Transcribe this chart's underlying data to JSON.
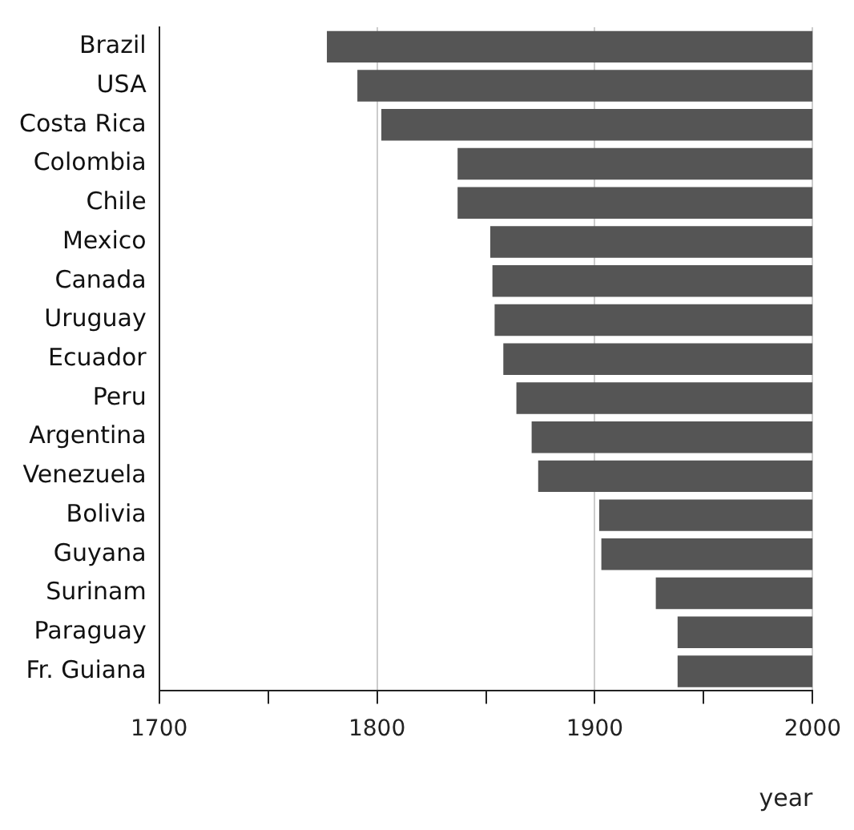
{
  "chart_data": {
    "type": "bar",
    "orientation": "horizontal",
    "xlabel": "year",
    "categories": [
      "Brazil",
      "USA",
      "Costa Rica",
      "Colombia",
      "Chile",
      "Mexico",
      "Canada",
      "Uruguay",
      "Ecuador",
      "Peru",
      "Argentina",
      "Venezuela",
      "Bolivia",
      "Guyana",
      "Surinam",
      "Paraguay",
      "Fr. Guiana"
    ],
    "base": [
      1777,
      1791,
      1802,
      1837,
      1837,
      1852,
      1853,
      1854,
      1858,
      1864,
      1871,
      1874,
      1902,
      1903,
      1928,
      1938,
      1938
    ],
    "values": [
      223,
      209,
      198,
      163,
      163,
      148,
      147,
      146,
      142,
      136,
      129,
      126,
      98,
      97,
      72,
      62,
      62
    ],
    "color": "#555555",
    "xlim": [
      1700,
      2000
    ],
    "xticks": [
      1700,
      {
        "value": 1750,
        "label": null
      },
      1800,
      {
        "value": 1850,
        "label": null
      },
      1900,
      {
        "value": 1950,
        "label": null
      },
      2000
    ],
    "grid": "x",
    "legend": false
  }
}
